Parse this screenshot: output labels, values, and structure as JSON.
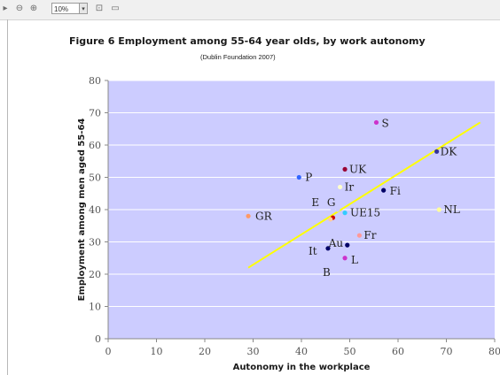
{
  "toolbar": {
    "zoom_value": "10%",
    "zoom_arrow": "▾",
    "icons": [
      "small-triangle-icon",
      "zoom-out-icon",
      "zoom-in-icon",
      "fit-page-icon",
      "view-icon"
    ]
  },
  "chart_data": {
    "type": "scatter",
    "title": "Figure 6  Employment among 55-64 year olds, by work autonomy",
    "subtitle": "(Dublin Foundation 2007)",
    "xlabel": "Autonomy in the workplace",
    "ylabel": "Employment among men aged 55-64",
    "xlim": [
      0,
      80
    ],
    "ylim": [
      0,
      80
    ],
    "xticks": [
      0,
      10,
      20,
      30,
      40,
      50,
      60,
      70,
      80
    ],
    "yticks": [
      0,
      10,
      20,
      30,
      40,
      50,
      60,
      70,
      80
    ],
    "xtick_labels": [
      "0",
      "10",
      "20",
      "30",
      "40",
      "50",
      "60",
      "70",
      "80"
    ],
    "ytick_labels": [
      "0",
      "10",
      "20",
      "30",
      "40",
      "50",
      "60",
      "70",
      "80"
    ],
    "grid": "horizontal",
    "plot_background": "#ccccff",
    "points": [
      {
        "label": "S",
        "x": 55.5,
        "y": 67,
        "color": "#cc33cc"
      },
      {
        "label": "DK",
        "x": 68,
        "y": 58,
        "color": "#333399"
      },
      {
        "label": "UK",
        "x": 49,
        "y": 52.5,
        "color": "#990033"
      },
      {
        "label": "P",
        "x": 39.5,
        "y": 50,
        "color": "#3366ff"
      },
      {
        "label": "Ir",
        "x": 48,
        "y": 47,
        "color": "#ffffcc"
      },
      {
        "label": "Fi",
        "x": 57,
        "y": 46,
        "color": "#000066"
      },
      {
        "label": "E",
        "x": 46.5,
        "y": 40,
        "color": "#ccccff"
      },
      {
        "label": "G",
        "x": 47.5,
        "y": 40,
        "color": "#ccccff"
      },
      {
        "label": "NL",
        "x": 68.5,
        "y": 40,
        "color": "#ffff99"
      },
      {
        "label": "UE15",
        "x": 49,
        "y": 39,
        "color": "#33ccff"
      },
      {
        "label": "GR",
        "x": 29,
        "y": 38,
        "color": "#ff9966"
      },
      {
        "label": "",
        "x": 46.5,
        "y": 37.5,
        "color": "#cc0000"
      },
      {
        "label": "",
        "x": 46,
        "y": 37,
        "color": "#ffcc99"
      },
      {
        "label": "Fr",
        "x": 52,
        "y": 32,
        "color": "#ff9999"
      },
      {
        "label": "Au",
        "x": 49.5,
        "y": 29,
        "color": "#000066"
      },
      {
        "label": "It",
        "x": 45.5,
        "y": 28,
        "color": "#000066"
      },
      {
        "label": "L",
        "x": 49,
        "y": 25,
        "color": "#cc33cc"
      },
      {
        "label": "B",
        "x": 45.5,
        "y": 23,
        "color": "#ccccff"
      }
    ],
    "trendline": {
      "x": [
        29,
        77
      ],
      "y": [
        22,
        67
      ],
      "color": "#ffff00"
    }
  }
}
